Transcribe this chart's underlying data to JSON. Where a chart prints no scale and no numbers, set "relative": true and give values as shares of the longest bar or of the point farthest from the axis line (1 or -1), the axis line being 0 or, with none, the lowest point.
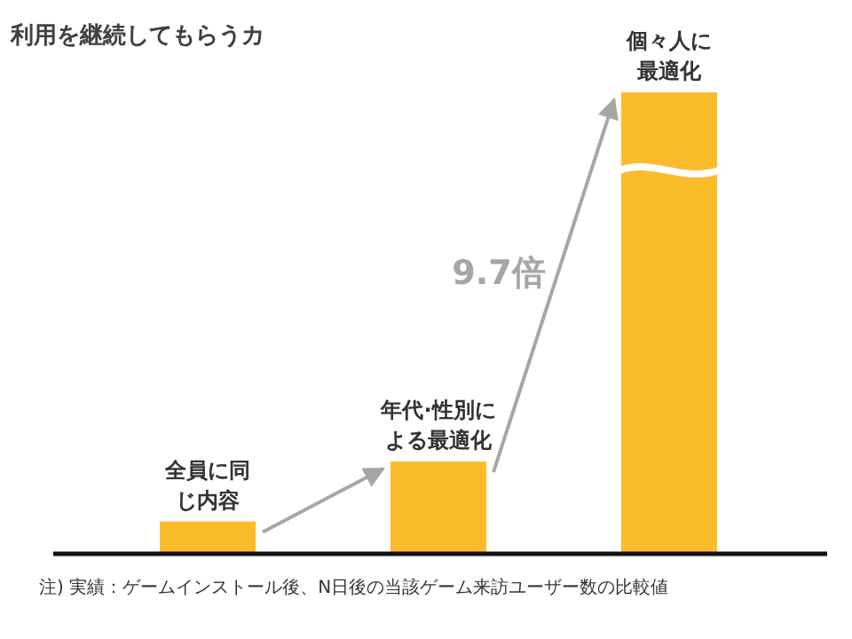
{
  "chart_data": {
    "type": "bar",
    "relative": true,
    "title": "利用を継続してもらうカ",
    "categories": [
      "全員に同じ内容",
      "年代·性別による最適化",
      "個々人に最適化"
    ],
    "values": [
      0.07,
      0.2,
      1
    ],
    "color": "#fbbc2c",
    "annotations": [
      "9.7倍",
      "注) 実績：ゲームインストール後、N日後の当該ゲーム来訪ユーザー数の比較値"
    ]
  }
}
